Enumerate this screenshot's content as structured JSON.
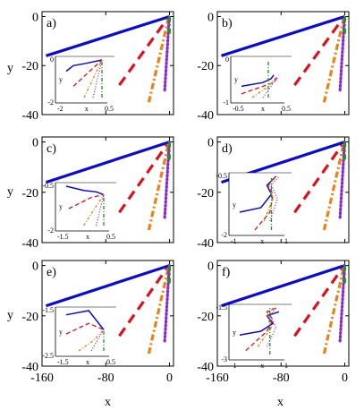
{
  "figure": {
    "xlabel": "x",
    "ylabel": "y",
    "xticks": [
      -160,
      -80,
      0
    ],
    "yticks": [
      0,
      -20,
      -40
    ],
    "xlim": [
      -160,
      5
    ],
    "ylim": [
      -40,
      2
    ]
  },
  "colors": {
    "blue": "#0a0ad8",
    "red": "#e0101a",
    "orange": "#f08010",
    "purple": "#8a28d6",
    "green": "#169a16"
  },
  "chart_data": [
    {
      "type": "line",
      "panel": "a)",
      "series": [
        {
          "color": "blue",
          "style": "solid",
          "x": [
            -155,
            0
          ],
          "y": [
            -16,
            0
          ]
        },
        {
          "color": "red",
          "style": "dashed",
          "x": [
            -63,
            -3
          ],
          "y": [
            -28,
            -1
          ]
        },
        {
          "color": "orange",
          "style": "dotted-dash",
          "x": [
            -26,
            -1.5
          ],
          "y": [
            -35,
            -1
          ]
        },
        {
          "color": "purple",
          "style": "dotted",
          "x": [
            -6,
            -0.3
          ],
          "y": [
            -30,
            0
          ]
        },
        {
          "color": "green",
          "style": "dash-dot",
          "x": [
            -0.3,
            0
          ],
          "y": [
            -7,
            0
          ]
        }
      ],
      "inset": {
        "label_y": "y",
        "label_x": "x",
        "ytick_labels": [
          "0",
          "-2"
        ],
        "xtick_labels": [
          "-2",
          "0.5"
        ],
        "series": [
          {
            "color": "blue",
            "style": "solid",
            "x": [
              -2,
              -1.6,
              -1.0,
              0
            ],
            "y": [
              -0.6,
              -0.3,
              -0.2,
              0
            ]
          },
          {
            "color": "red",
            "style": "dashed",
            "x": [
              -1.6,
              0
            ],
            "y": [
              -1.4,
              0
            ]
          },
          {
            "color": "orange",
            "style": "dotted-dash",
            "x": [
              -1.0,
              0
            ],
            "y": [
              -2.0,
              0
            ]
          },
          {
            "color": "purple",
            "style": "dotted",
            "x": [
              -0.5,
              0
            ],
            "y": [
              -2.0,
              0
            ]
          },
          {
            "color": "green",
            "style": "dash-dot",
            "x": [
              0,
              0
            ],
            "y": [
              -2.0,
              0
            ]
          }
        ]
      }
    },
    {
      "type": "line",
      "panel": "b)",
      "series": [
        {
          "color": "blue",
          "style": "solid",
          "x": [
            -155,
            0
          ],
          "y": [
            -16,
            0
          ]
        },
        {
          "color": "red",
          "style": "dashed",
          "x": [
            -63,
            -3
          ],
          "y": [
            -28,
            -1
          ]
        },
        {
          "color": "orange",
          "style": "dotted-dash",
          "x": [
            -26,
            -1.5
          ],
          "y": [
            -35,
            -1
          ]
        },
        {
          "color": "purple",
          "style": "dotted",
          "x": [
            -6,
            -0.3
          ],
          "y": [
            -30,
            0
          ]
        },
        {
          "color": "green",
          "style": "dash-dot",
          "x": [
            -0.3,
            0
          ],
          "y": [
            -7,
            0
          ]
        }
      ],
      "inset": {
        "label_y": "y",
        "label_x": "x",
        "ytick_labels": [
          "0",
          "-1"
        ],
        "xtick_labels": [
          "-0.5",
          "0.5"
        ],
        "series": [
          {
            "color": "blue",
            "style": "solid",
            "x": [
              -0.5,
              -0.1,
              0.05,
              0.1
            ],
            "y": [
              -0.7,
              -0.6,
              -0.5,
              -0.4
            ]
          },
          {
            "color": "red",
            "style": "dashed",
            "x": [
              -0.5,
              -0.1,
              0.1,
              0.2
            ],
            "y": [
              -0.9,
              -0.7,
              -0.6,
              -0.4
            ]
          },
          {
            "color": "orange",
            "style": "dotted-dash",
            "x": [
              -0.3,
              0.0,
              0.15
            ],
            "y": [
              -1.0,
              -0.7,
              -0.45
            ]
          },
          {
            "color": "purple",
            "style": "dotted",
            "x": [
              -0.1,
              0.05,
              0.15
            ],
            "y": [
              -1.0,
              -0.7,
              -0.5
            ]
          },
          {
            "color": "green",
            "style": "dash-dot",
            "x": [
              0,
              0
            ],
            "y": [
              -1.0,
              0
            ]
          }
        ]
      }
    },
    {
      "type": "line",
      "panel": "c)",
      "series": [
        {
          "color": "blue",
          "style": "solid",
          "x": [
            -155,
            0
          ],
          "y": [
            -16,
            0
          ]
        },
        {
          "color": "red",
          "style": "dashed",
          "x": [
            -63,
            -3
          ],
          "y": [
            -28,
            -1
          ]
        },
        {
          "color": "orange",
          "style": "dotted-dash",
          "x": [
            -26,
            -1.5
          ],
          "y": [
            -35,
            -1
          ]
        },
        {
          "color": "purple",
          "style": "dotted",
          "x": [
            -6,
            -0.3
          ],
          "y": [
            -30,
            0
          ]
        },
        {
          "color": "green",
          "style": "dash-dot",
          "x": [
            -0.3,
            0
          ],
          "y": [
            -7,
            0
          ]
        }
      ],
      "inset": {
        "label_y": "y",
        "label_x": "x",
        "ytick_labels": [
          "-0.5",
          "-2"
        ],
        "xtick_labels": [
          "-1.5",
          "0.5"
        ],
        "series": [
          {
            "color": "blue",
            "style": "solid",
            "x": [
              -1.5,
              -0.8,
              -0.3,
              0
            ],
            "y": [
              -0.6,
              -0.75,
              -0.8,
              -0.9
            ]
          },
          {
            "color": "red",
            "style": "dashed",
            "x": [
              -1.4,
              -0.5,
              0
            ],
            "y": [
              -1.4,
              -1.0,
              -0.9
            ]
          },
          {
            "color": "orange",
            "style": "dotted-dash",
            "x": [
              -0.8,
              0
            ],
            "y": [
              -2.0,
              -0.9
            ]
          },
          {
            "color": "purple",
            "style": "dotted",
            "x": [
              -0.3,
              0
            ],
            "y": [
              -2.0,
              -0.9
            ]
          },
          {
            "color": "green",
            "style": "dash-dot",
            "x": [
              0,
              0
            ],
            "y": [
              -2.0,
              -0.9
            ]
          }
        ]
      }
    },
    {
      "type": "line",
      "panel": "d)",
      "series": [
        {
          "color": "blue",
          "style": "solid",
          "x": [
            -155,
            0
          ],
          "y": [
            -16,
            0
          ]
        },
        {
          "color": "red",
          "style": "dashed",
          "x": [
            -63,
            -3
          ],
          "y": [
            -28,
            -1
          ]
        },
        {
          "color": "orange",
          "style": "dotted-dash",
          "x": [
            -26,
            -1.5
          ],
          "y": [
            -35,
            -1
          ]
        },
        {
          "color": "purple",
          "style": "dotted",
          "x": [
            -6,
            -0.3
          ],
          "y": [
            -30,
            0
          ]
        },
        {
          "color": "green",
          "style": "dash-dot",
          "x": [
            -0.3,
            0
          ],
          "y": [
            -7,
            0
          ]
        }
      ],
      "inset": {
        "label_y": "y",
        "label_x": "x",
        "ytick_labels": [
          "-0.5",
          "-2"
        ],
        "xtick_labels": [
          "-1",
          "1"
        ],
        "series": [
          {
            "color": "blue",
            "style": "solid",
            "x": [
              -1,
              -0.3,
              0.05,
              -0.1,
              0.2
            ],
            "y": [
              -1.6,
              -1.5,
              -1.2,
              -1.0,
              -0.8
            ]
          },
          {
            "color": "red",
            "style": "dashed",
            "x": [
              -0.5,
              0.0,
              0.1,
              -0.05,
              0.2
            ],
            "y": [
              -2.0,
              -1.6,
              -1.2,
              -1.0,
              -0.8
            ]
          },
          {
            "color": "orange",
            "style": "dotted-dash",
            "x": [
              -0.2,
              0.1,
              -0.05,
              0.2
            ],
            "y": [
              -1.8,
              -1.3,
              -1.0,
              -0.8
            ]
          },
          {
            "color": "purple",
            "style": "dotted",
            "x": [
              0.0,
              0.25,
              0.05,
              0.3
            ],
            "y": [
              -1.8,
              -1.3,
              -1.0,
              -0.8
            ]
          },
          {
            "color": "green",
            "style": "dash-dot",
            "x": [
              0.05,
              0.05
            ],
            "y": [
              -2.0,
              -0.8
            ]
          }
        ]
      }
    },
    {
      "type": "line",
      "panel": "e)",
      "series": [
        {
          "color": "blue",
          "style": "solid",
          "x": [
            -155,
            0
          ],
          "y": [
            -16,
            0
          ]
        },
        {
          "color": "red",
          "style": "dashed",
          "x": [
            -63,
            -3
          ],
          "y": [
            -28,
            -1
          ]
        },
        {
          "color": "orange",
          "style": "dotted-dash",
          "x": [
            -26,
            -1.5
          ],
          "y": [
            -35,
            -1
          ]
        },
        {
          "color": "purple",
          "style": "dotted",
          "x": [
            -6,
            -0.3
          ],
          "y": [
            -30,
            0
          ]
        },
        {
          "color": "green",
          "style": "dash-dot",
          "x": [
            -0.3,
            0
          ],
          "y": [
            -7,
            0
          ]
        }
      ],
      "inset": {
        "label_y": "y",
        "label_x": "x",
        "ytick_labels": [
          "-1.5",
          "-2.5"
        ],
        "xtick_labels": [
          "-1.5",
          "0.5"
        ],
        "series": [
          {
            "color": "blue",
            "style": "solid",
            "x": [
              -1.5,
              -0.6,
              0
            ],
            "y": [
              -1.65,
              -1.55,
              -2.0
            ]
          },
          {
            "color": "red",
            "style": "dashed",
            "x": [
              -1.5,
              -0.6,
              0
            ],
            "y": [
              -2.1,
              -1.85,
              -2.0
            ]
          },
          {
            "color": "orange",
            "style": "dotted-dash",
            "x": [
              -1.0,
              -0.4,
              0
            ],
            "y": [
              -2.5,
              -2.25,
              -2.0
            ]
          },
          {
            "color": "purple",
            "style": "dotted",
            "x": [
              -0.5,
              0
            ],
            "y": [
              -2.5,
              -2.0
            ]
          },
          {
            "color": "green",
            "style": "dash-dot",
            "x": [
              0,
              0
            ],
            "y": [
              -2.5,
              -2.0
            ]
          }
        ]
      }
    },
    {
      "type": "line",
      "panel": "f)",
      "series": [
        {
          "color": "blue",
          "style": "solid",
          "x": [
            -155,
            0
          ],
          "y": [
            -16,
            0
          ]
        },
        {
          "color": "red",
          "style": "dashed",
          "x": [
            -63,
            -3
          ],
          "y": [
            -28,
            -1
          ]
        },
        {
          "color": "orange",
          "style": "dotted-dash",
          "x": [
            -26,
            -1.5
          ],
          "y": [
            -35,
            -1
          ]
        },
        {
          "color": "purple",
          "style": "dotted",
          "x": [
            -6,
            -0.3
          ],
          "y": [
            -30,
            0
          ]
        },
        {
          "color": "green",
          "style": "dash-dot",
          "x": [
            -0.3,
            0
          ],
          "y": [
            -7,
            0
          ]
        }
      ],
      "inset": {
        "label_y": "y",
        "label_x": "x",
        "ytick_labels": [
          "-1.5",
          "-3"
        ],
        "xtick_labels": [
          "-1",
          "1"
        ],
        "series": [
          {
            "color": "blue",
            "style": "solid",
            "x": [
              -1,
              -0.3,
              0.1,
              -0.1,
              0.3
            ],
            "y": [
              -2.5,
              -2.4,
              -2.2,
              -2.0,
              -1.9
            ]
          },
          {
            "color": "red",
            "style": "dashed",
            "x": [
              -0.8,
              -0.1,
              0.1,
              -0.1,
              0.2
            ],
            "y": [
              -2.9,
              -2.4,
              -2.1,
              -1.9,
              -1.8
            ]
          },
          {
            "color": "orange",
            "style": "dotted-dash",
            "x": [
              -0.4,
              0.05,
              -0.1,
              0.1
            ],
            "y": [
              -2.8,
              -2.3,
              -2.0,
              -1.8
            ]
          },
          {
            "color": "purple",
            "style": "dotted",
            "x": [
              -0.1,
              0.2,
              0.0,
              0.2
            ],
            "y": [
              -2.8,
              -2.3,
              -2.0,
              -1.8
            ]
          },
          {
            "color": "green",
            "style": "dash-dot",
            "x": [
              0.0,
              0.0
            ],
            "y": [
              -3.0,
              -1.8
            ]
          }
        ]
      }
    }
  ]
}
